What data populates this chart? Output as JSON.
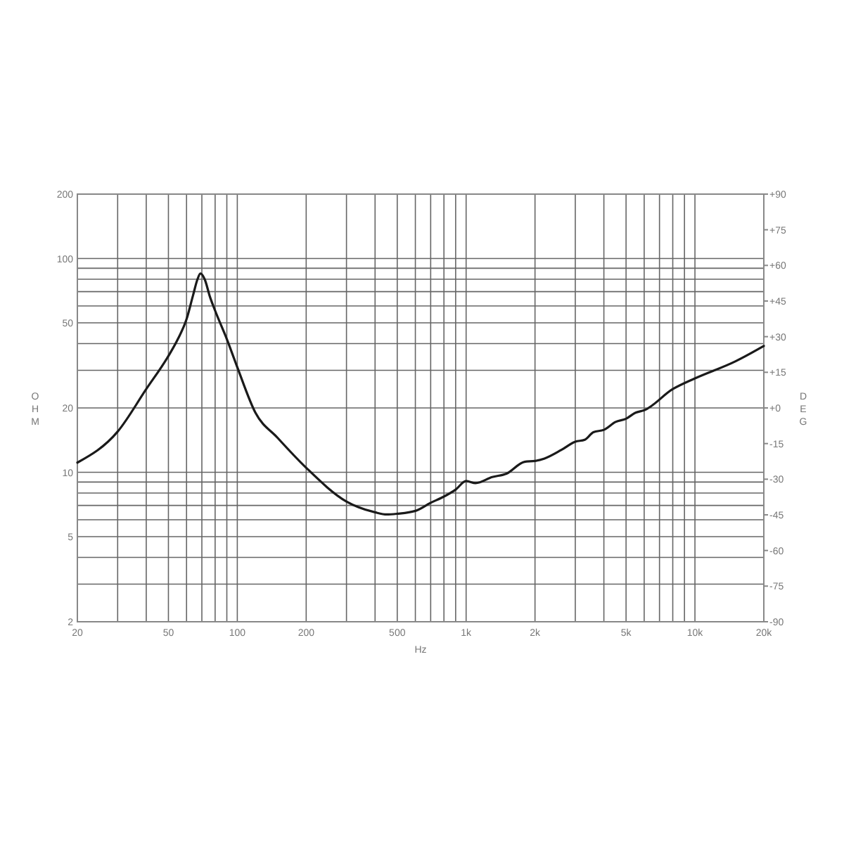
{
  "chart_data": {
    "type": "line",
    "xlabel": "Hz",
    "ylabel": "OHM",
    "y2label": "DEG",
    "log": "xy",
    "grid": true,
    "line_style": "solid",
    "marker": "none",
    "xlim": [
      20,
      20000
    ],
    "ylim": [
      2,
      200
    ],
    "y2lim": [
      -90,
      90
    ],
    "xticks": [
      20,
      {
        "value": 30,
        "label": null
      },
      {
        "value": 40,
        "label": null
      },
      50,
      {
        "value": 60,
        "label": null
      },
      {
        "value": 70,
        "label": null
      },
      {
        "value": 80,
        "label": null
      },
      {
        "value": 90,
        "label": null
      },
      100,
      200,
      {
        "value": 300,
        "label": null
      },
      {
        "value": 400,
        "label": null
      },
      500,
      {
        "value": 600,
        "label": null
      },
      {
        "value": 700,
        "label": null
      },
      {
        "value": 800,
        "label": null
      },
      {
        "value": 900,
        "label": null
      },
      {
        "value": 1000,
        "label": "1k"
      },
      {
        "value": 2000,
        "label": "2k"
      },
      {
        "value": 3000,
        "label": null
      },
      {
        "value": 4000,
        "label": null
      },
      {
        "value": 5000,
        "label": "5k"
      },
      {
        "value": 6000,
        "label": null
      },
      {
        "value": 7000,
        "label": null
      },
      {
        "value": 8000,
        "label": null
      },
      {
        "value": 9000,
        "label": null
      },
      {
        "value": 10000,
        "label": "10k"
      },
      {
        "value": 20000,
        "label": "20k"
      }
    ],
    "yticks": [
      2,
      {
        "value": 3,
        "label": null
      },
      {
        "value": 4,
        "label": null
      },
      5,
      {
        "value": 6,
        "label": null
      },
      {
        "value": 7,
        "label": null
      },
      {
        "value": 8,
        "label": null
      },
      {
        "value": 9,
        "label": null
      },
      10,
      20,
      {
        "value": 30,
        "label": null
      },
      {
        "value": 40,
        "label": null
      },
      50,
      {
        "value": 60,
        "label": null
      },
      {
        "value": 70,
        "label": null
      },
      {
        "value": 80,
        "label": null
      },
      {
        "value": 90,
        "label": null
      },
      100,
      200
    ],
    "y2ticks": [
      {
        "value": 90,
        "label": "+90"
      },
      {
        "value": 75,
        "label": "+75"
      },
      {
        "value": 60,
        "label": "+60"
      },
      {
        "value": 45,
        "label": "+45"
      },
      {
        "value": 30,
        "label": "+30"
      },
      {
        "value": 15,
        "label": "+15"
      },
      {
        "value": 0,
        "label": "+0"
      },
      -15,
      -30,
      -45,
      -60,
      -75,
      -90
    ],
    "series": [
      {
        "color": "#1a1a1a",
        "x": [
          20,
          30,
          40,
          50,
          55,
          60,
          64,
          67,
          69,
          72,
          76,
          80,
          90,
          100,
          120,
          150,
          200,
          300,
          400,
          450,
          500,
          600,
          700,
          800,
          900,
          1000,
          1100,
          1300,
          1500,
          1800,
          2000,
          2200,
          2600,
          3000,
          3300,
          3600,
          4000,
          4500,
          5000,
          5500,
          6000,
          8000,
          10000,
          15000,
          20000
        ],
        "values": [
          11.1,
          15.5,
          24.5,
          35,
          42,
          52,
          67,
          80,
          85,
          80,
          66,
          57,
          42,
          31,
          19,
          14.5,
          10.5,
          7.3,
          6.5,
          6.35,
          6.4,
          6.6,
          7.2,
          7.7,
          8.3,
          9.1,
          8.9,
          9.5,
          9.85,
          11.2,
          11.3,
          11.6,
          12.7,
          13.9,
          14.2,
          15.4,
          15.8,
          17.2,
          17.8,
          19,
          19.5,
          24.5,
          27.5,
          33,
          39
        ]
      }
    ]
  }
}
